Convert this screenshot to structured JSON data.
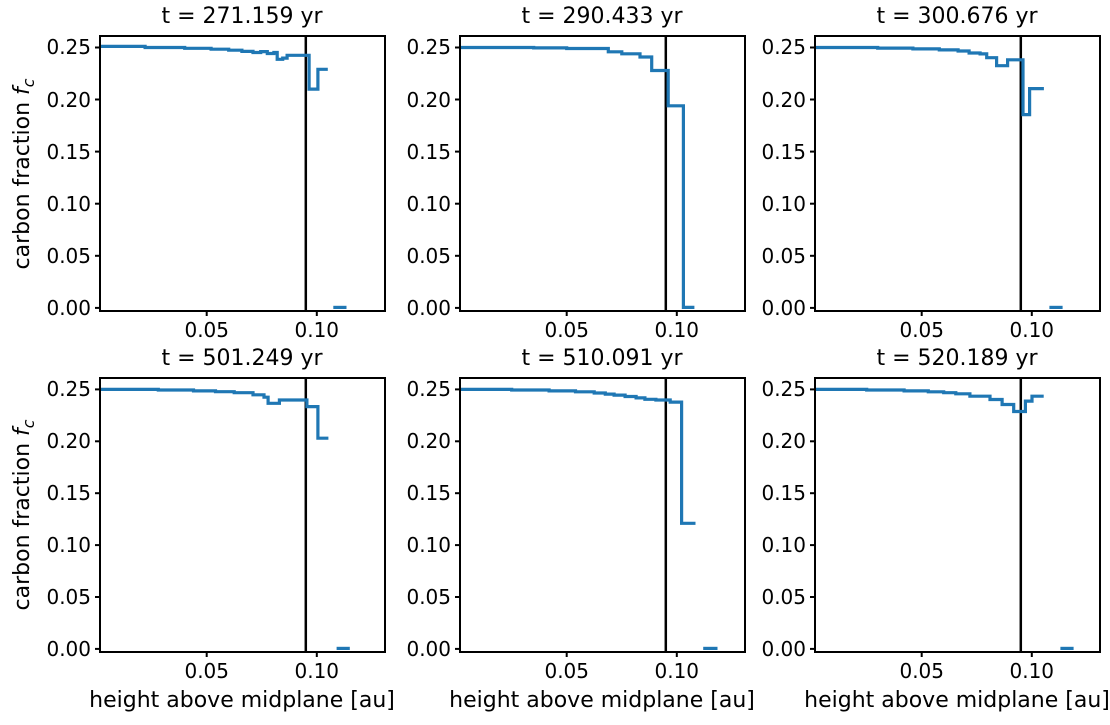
{
  "figure": {
    "background": "#ffffff",
    "line_color": "#1f77b4",
    "axis_color": "#000000",
    "xlabel": "height above midplane [au]",
    "ylabel_prefix": "carbon fraction ",
    "ylabel_math": "f",
    "ylabel_sub": "c"
  },
  "chart_data": [
    {
      "type": "line",
      "title": "t = 271.159 yr",
      "xlabel": "height above midplane [au]",
      "ylabel": "carbon fraction f_c",
      "xlim": [
        0.0015,
        0.131
      ],
      "ylim": [
        -0.003,
        0.261
      ],
      "grid": false,
      "vline_x": 0.095,
      "xticks": [
        {
          "v": 0.05,
          "label": "0.05"
        },
        {
          "v": 0.1,
          "label": "0.10"
        }
      ],
      "yticks": [
        {
          "v": 0.0,
          "label": "0.00"
        },
        {
          "v": 0.05,
          "label": "0.05"
        },
        {
          "v": 0.1,
          "label": "0.10"
        },
        {
          "v": 0.15,
          "label": "0.15"
        },
        {
          "v": 0.2,
          "label": "0.20"
        },
        {
          "v": 0.25,
          "label": "0.25"
        }
      ],
      "series": [
        {
          "name": "carbon-fraction-profile",
          "points": [
            [
              0.0015,
              0.251
            ],
            [
              0.022,
              0.251
            ],
            [
              0.022,
              0.25
            ],
            [
              0.04,
              0.25
            ],
            [
              0.04,
              0.2492
            ],
            [
              0.052,
              0.2492
            ],
            [
              0.052,
              0.2483
            ],
            [
              0.06,
              0.2483
            ],
            [
              0.06,
              0.2474
            ],
            [
              0.066,
              0.2474
            ],
            [
              0.066,
              0.2462
            ],
            [
              0.071,
              0.2462
            ],
            [
              0.071,
              0.2452
            ],
            [
              0.0745,
              0.2452
            ],
            [
              0.0745,
              0.246
            ],
            [
              0.0775,
              0.246
            ],
            [
              0.0775,
              0.2442
            ],
            [
              0.0805,
              0.2442
            ],
            [
              0.0805,
              0.2452
            ],
            [
              0.082,
              0.2452
            ],
            [
              0.082,
              0.2386
            ],
            [
              0.0845,
              0.2386
            ],
            [
              0.0845,
              0.2398
            ],
            [
              0.0865,
              0.2398
            ],
            [
              0.0865,
              0.2425
            ],
            [
              0.0965,
              0.2425
            ],
            [
              0.0965,
              0.21
            ],
            [
              0.1005,
              0.21
            ],
            [
              0.1005,
              0.229
            ],
            [
              0.105,
              0.229
            ]
          ]
        },
        {
          "name": "zero-tail-segment",
          "points": [
            [
              0.1075,
              0.0005
            ],
            [
              0.1135,
              0.0005
            ]
          ]
        }
      ]
    },
    {
      "type": "line",
      "title": "t = 290.433 yr",
      "xlabel": "height above midplane [au]",
      "ylabel": "carbon fraction f_c",
      "xlim": [
        0.0015,
        0.131
      ],
      "ylim": [
        -0.003,
        0.261
      ],
      "grid": false,
      "vline_x": 0.095,
      "xticks": [
        {
          "v": 0.05,
          "label": "0.05"
        },
        {
          "v": 0.1,
          "label": "0.10"
        }
      ],
      "yticks": [
        {
          "v": 0.0,
          "label": "0.00"
        },
        {
          "v": 0.05,
          "label": "0.05"
        },
        {
          "v": 0.1,
          "label": "0.10"
        },
        {
          "v": 0.15,
          "label": "0.15"
        },
        {
          "v": 0.2,
          "label": "0.20"
        },
        {
          "v": 0.25,
          "label": "0.25"
        }
      ],
      "series": [
        {
          "name": "carbon-fraction-profile",
          "points": [
            [
              0.0015,
              0.25
            ],
            [
              0.035,
              0.25
            ],
            [
              0.035,
              0.2496
            ],
            [
              0.05,
              0.2496
            ],
            [
              0.05,
              0.249
            ],
            [
              0.0689,
              0.249
            ],
            [
              0.0689,
              0.2458
            ],
            [
              0.075,
              0.2458
            ],
            [
              0.075,
              0.2439
            ],
            [
              0.0833,
              0.2439
            ],
            [
              0.0833,
              0.2408
            ],
            [
              0.0886,
              0.2408
            ],
            [
              0.0886,
              0.2279
            ],
            [
              0.0961,
              0.2279
            ],
            [
              0.0961,
              0.194
            ],
            [
              0.103,
              0.194
            ],
            [
              0.103,
              0.0005
            ],
            [
              0.108,
              0.0005
            ]
          ]
        }
      ]
    },
    {
      "type": "line",
      "title": "t = 300.676 yr",
      "xlabel": "height above midplane [au]",
      "ylabel": "carbon fraction f_c",
      "xlim": [
        0.0015,
        0.131
      ],
      "ylim": [
        -0.003,
        0.261
      ],
      "grid": false,
      "vline_x": 0.095,
      "xticks": [
        {
          "v": 0.05,
          "label": "0.05"
        },
        {
          "v": 0.1,
          "label": "0.10"
        }
      ],
      "yticks": [
        {
          "v": 0.0,
          "label": "0.00"
        },
        {
          "v": 0.05,
          "label": "0.05"
        },
        {
          "v": 0.1,
          "label": "0.10"
        },
        {
          "v": 0.15,
          "label": "0.15"
        },
        {
          "v": 0.2,
          "label": "0.20"
        },
        {
          "v": 0.25,
          "label": "0.25"
        }
      ],
      "series": [
        {
          "name": "carbon-fraction-profile",
          "points": [
            [
              0.0015,
              0.25
            ],
            [
              0.03,
              0.25
            ],
            [
              0.03,
              0.2494
            ],
            [
              0.046,
              0.2494
            ],
            [
              0.046,
              0.2486
            ],
            [
              0.058,
              0.2486
            ],
            [
              0.058,
              0.2477
            ],
            [
              0.0665,
              0.2477
            ],
            [
              0.0665,
              0.2466
            ],
            [
              0.0715,
              0.2466
            ],
            [
              0.0715,
              0.2447
            ],
            [
              0.0765,
              0.2447
            ],
            [
              0.0765,
              0.2438
            ],
            [
              0.0795,
              0.2438
            ],
            [
              0.0795,
              0.2402
            ],
            [
              0.084,
              0.2402
            ],
            [
              0.084,
              0.2325
            ],
            [
              0.089,
              0.2325
            ],
            [
              0.089,
              0.2382
            ],
            [
              0.096,
              0.2382
            ],
            [
              0.096,
              0.1855
            ],
            [
              0.099,
              0.1855
            ],
            [
              0.099,
              0.2105
            ],
            [
              0.1055,
              0.2105
            ]
          ]
        },
        {
          "name": "zero-tail-segment",
          "points": [
            [
              0.108,
              0.0005
            ],
            [
              0.114,
              0.0005
            ]
          ]
        }
      ]
    },
    {
      "type": "line",
      "title": "t = 501.249 yr",
      "xlabel": "height above midplane [au]",
      "ylabel": "carbon fraction f_c",
      "xlim": [
        0.0015,
        0.131
      ],
      "ylim": [
        -0.003,
        0.261
      ],
      "grid": false,
      "vline_x": 0.095,
      "xticks": [
        {
          "v": 0.05,
          "label": "0.05"
        },
        {
          "v": 0.1,
          "label": "0.10"
        }
      ],
      "yticks": [
        {
          "v": 0.0,
          "label": "0.00"
        },
        {
          "v": 0.05,
          "label": "0.05"
        },
        {
          "v": 0.1,
          "label": "0.10"
        },
        {
          "v": 0.15,
          "label": "0.15"
        },
        {
          "v": 0.2,
          "label": "0.20"
        },
        {
          "v": 0.25,
          "label": "0.25"
        }
      ],
      "series": [
        {
          "name": "carbon-fraction-profile",
          "points": [
            [
              0.0015,
              0.25
            ],
            [
              0.028,
              0.25
            ],
            [
              0.028,
              0.2494
            ],
            [
              0.044,
              0.2494
            ],
            [
              0.044,
              0.2486
            ],
            [
              0.054,
              0.2486
            ],
            [
              0.054,
              0.2478
            ],
            [
              0.0625,
              0.2478
            ],
            [
              0.0625,
              0.2468
            ],
            [
              0.071,
              0.2468
            ],
            [
              0.071,
              0.2448
            ],
            [
              0.076,
              0.2448
            ],
            [
              0.076,
              0.2425
            ],
            [
              0.0779,
              0.2425
            ],
            [
              0.0779,
              0.2366
            ],
            [
              0.083,
              0.2366
            ],
            [
              0.083,
              0.2398
            ],
            [
              0.0955,
              0.2398
            ],
            [
              0.0955,
              0.2334
            ],
            [
              0.1005,
              0.2334
            ],
            [
              0.1005,
              0.203
            ],
            [
              0.1053,
              0.203
            ]
          ]
        },
        {
          "name": "zero-tail-segment",
          "points": [
            [
              0.109,
              0.0005
            ],
            [
              0.115,
              0.0005
            ]
          ]
        }
      ]
    },
    {
      "type": "line",
      "title": "t = 510.091 yr",
      "xlabel": "height above midplane [au]",
      "ylabel": "carbon fraction f_c",
      "xlim": [
        0.0015,
        0.131
      ],
      "ylim": [
        -0.003,
        0.261
      ],
      "grid": false,
      "vline_x": 0.095,
      "xticks": [
        {
          "v": 0.05,
          "label": "0.05"
        },
        {
          "v": 0.1,
          "label": "0.10"
        }
      ],
      "yticks": [
        {
          "v": 0.0,
          "label": "0.00"
        },
        {
          "v": 0.05,
          "label": "0.05"
        },
        {
          "v": 0.1,
          "label": "0.10"
        },
        {
          "v": 0.15,
          "label": "0.15"
        },
        {
          "v": 0.2,
          "label": "0.20"
        },
        {
          "v": 0.25,
          "label": "0.25"
        }
      ],
      "series": [
        {
          "name": "carbon-fraction-profile",
          "points": [
            [
              0.0015,
              0.25
            ],
            [
              0.025,
              0.25
            ],
            [
              0.025,
              0.2494
            ],
            [
              0.042,
              0.2494
            ],
            [
              0.042,
              0.2486
            ],
            [
              0.054,
              0.2486
            ],
            [
              0.054,
              0.2477
            ],
            [
              0.0625,
              0.2477
            ],
            [
              0.0625,
              0.2465
            ],
            [
              0.0675,
              0.2465
            ],
            [
              0.0675,
              0.2455
            ],
            [
              0.0715,
              0.2455
            ],
            [
              0.0715,
              0.2445
            ],
            [
              0.0765,
              0.2445
            ],
            [
              0.0765,
              0.2432
            ],
            [
              0.0815,
              0.2432
            ],
            [
              0.0815,
              0.2418
            ],
            [
              0.0855,
              0.2418
            ],
            [
              0.0855,
              0.2405
            ],
            [
              0.0905,
              0.2405
            ],
            [
              0.0905,
              0.2398
            ],
            [
              0.097,
              0.2398
            ],
            [
              0.097,
              0.2378
            ],
            [
              0.1022,
              0.2378
            ],
            [
              0.1022,
              0.121
            ],
            [
              0.1085,
              0.121
            ]
          ]
        },
        {
          "name": "zero-tail-segment",
          "points": [
            [
              0.112,
              0.0005
            ],
            [
              0.1185,
              0.0005
            ]
          ]
        }
      ]
    },
    {
      "type": "line",
      "title": "t = 520.189 yr",
      "xlabel": "height above midplane [au]",
      "ylabel": "carbon fraction f_c",
      "xlim": [
        0.0015,
        0.131
      ],
      "ylim": [
        -0.003,
        0.261
      ],
      "grid": false,
      "vline_x": 0.095,
      "xticks": [
        {
          "v": 0.05,
          "label": "0.05"
        },
        {
          "v": 0.1,
          "label": "0.10"
        }
      ],
      "yticks": [
        {
          "v": 0.0,
          "label": "0.00"
        },
        {
          "v": 0.05,
          "label": "0.05"
        },
        {
          "v": 0.1,
          "label": "0.10"
        },
        {
          "v": 0.15,
          "label": "0.15"
        },
        {
          "v": 0.2,
          "label": "0.20"
        },
        {
          "v": 0.25,
          "label": "0.25"
        }
      ],
      "series": [
        {
          "name": "carbon-fraction-profile",
          "points": [
            [
              0.0015,
              0.25
            ],
            [
              0.025,
              0.25
            ],
            [
              0.025,
              0.2494
            ],
            [
              0.042,
              0.2494
            ],
            [
              0.042,
              0.2486
            ],
            [
              0.053,
              0.2486
            ],
            [
              0.053,
              0.2477
            ],
            [
              0.06,
              0.2477
            ],
            [
              0.06,
              0.2468
            ],
            [
              0.0655,
              0.2468
            ],
            [
              0.0655,
              0.2458
            ],
            [
              0.0719,
              0.2458
            ],
            [
              0.0719,
              0.2435
            ],
            [
              0.081,
              0.2435
            ],
            [
              0.081,
              0.2403
            ],
            [
              0.0865,
              0.2403
            ],
            [
              0.0865,
              0.2355
            ],
            [
              0.0918,
              0.2355
            ],
            [
              0.0918,
              0.2287
            ],
            [
              0.0971,
              0.2287
            ],
            [
              0.0971,
              0.2387
            ],
            [
              0.1001,
              0.2387
            ],
            [
              0.1001,
              0.2435
            ],
            [
              0.1054,
              0.2435
            ]
          ]
        },
        {
          "name": "zero-tail-segment",
          "points": [
            [
              0.113,
              0.0005
            ],
            [
              0.119,
              0.0005
            ]
          ]
        }
      ]
    }
  ]
}
